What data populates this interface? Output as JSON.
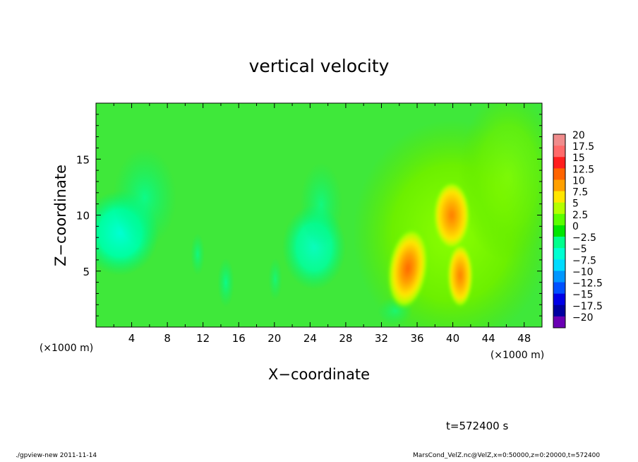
{
  "chart_data": {
    "type": "heatmap",
    "title": "vertical velocity",
    "xlabel": "X−coordinate",
    "ylabel": "Z−coordinate",
    "x_unit": "(×1000 m)",
    "y_unit": "(×1000 m)",
    "xlim": [
      0,
      50
    ],
    "ylim": [
      0,
      20
    ],
    "x_ticks": [
      4,
      8,
      12,
      16,
      20,
      24,
      28,
      32,
      36,
      40,
      44,
      48
    ],
    "y_ticks": [
      5,
      10,
      15
    ],
    "colorbar": {
      "labels": [
        "20",
        "17.5",
        "15",
        "12.5",
        "10",
        "7.5",
        "5",
        "2.5",
        "0",
        "−2.5",
        "−5",
        "−7.5",
        "−10",
        "−12.5",
        "−15",
        "−17.5",
        "−20"
      ],
      "colors": [
        "#f08c8c",
        "#ff6a6a",
        "#ff1e1e",
        "#ff6400",
        "#ffa000",
        "#ffe600",
        "#b4ff00",
        "#5aff00",
        "#00e600",
        "#00ff8c",
        "#00ffd2",
        "#00dcff",
        "#0096ff",
        "#0050ff",
        "#0000e6",
        "#0000a0",
        "#6a00b4"
      ]
    },
    "features": [
      {
        "x": 35,
        "z": 5,
        "value": 13
      },
      {
        "x": 39.5,
        "z": 9.5,
        "value": 11
      },
      {
        "x": 40.5,
        "z": 4.5,
        "value": 11
      },
      {
        "x": 3,
        "z": 8.5,
        "value": -5
      },
      {
        "x": 26,
        "z": 7,
        "value": -4
      }
    ]
  },
  "time_label": "t=572400 s",
  "footer": {
    "left": "./gpview-new  2011-11-14",
    "right": "MarsCond_VelZ.nc@VelZ,x=0:50000,z=0:20000,t=572400"
  }
}
